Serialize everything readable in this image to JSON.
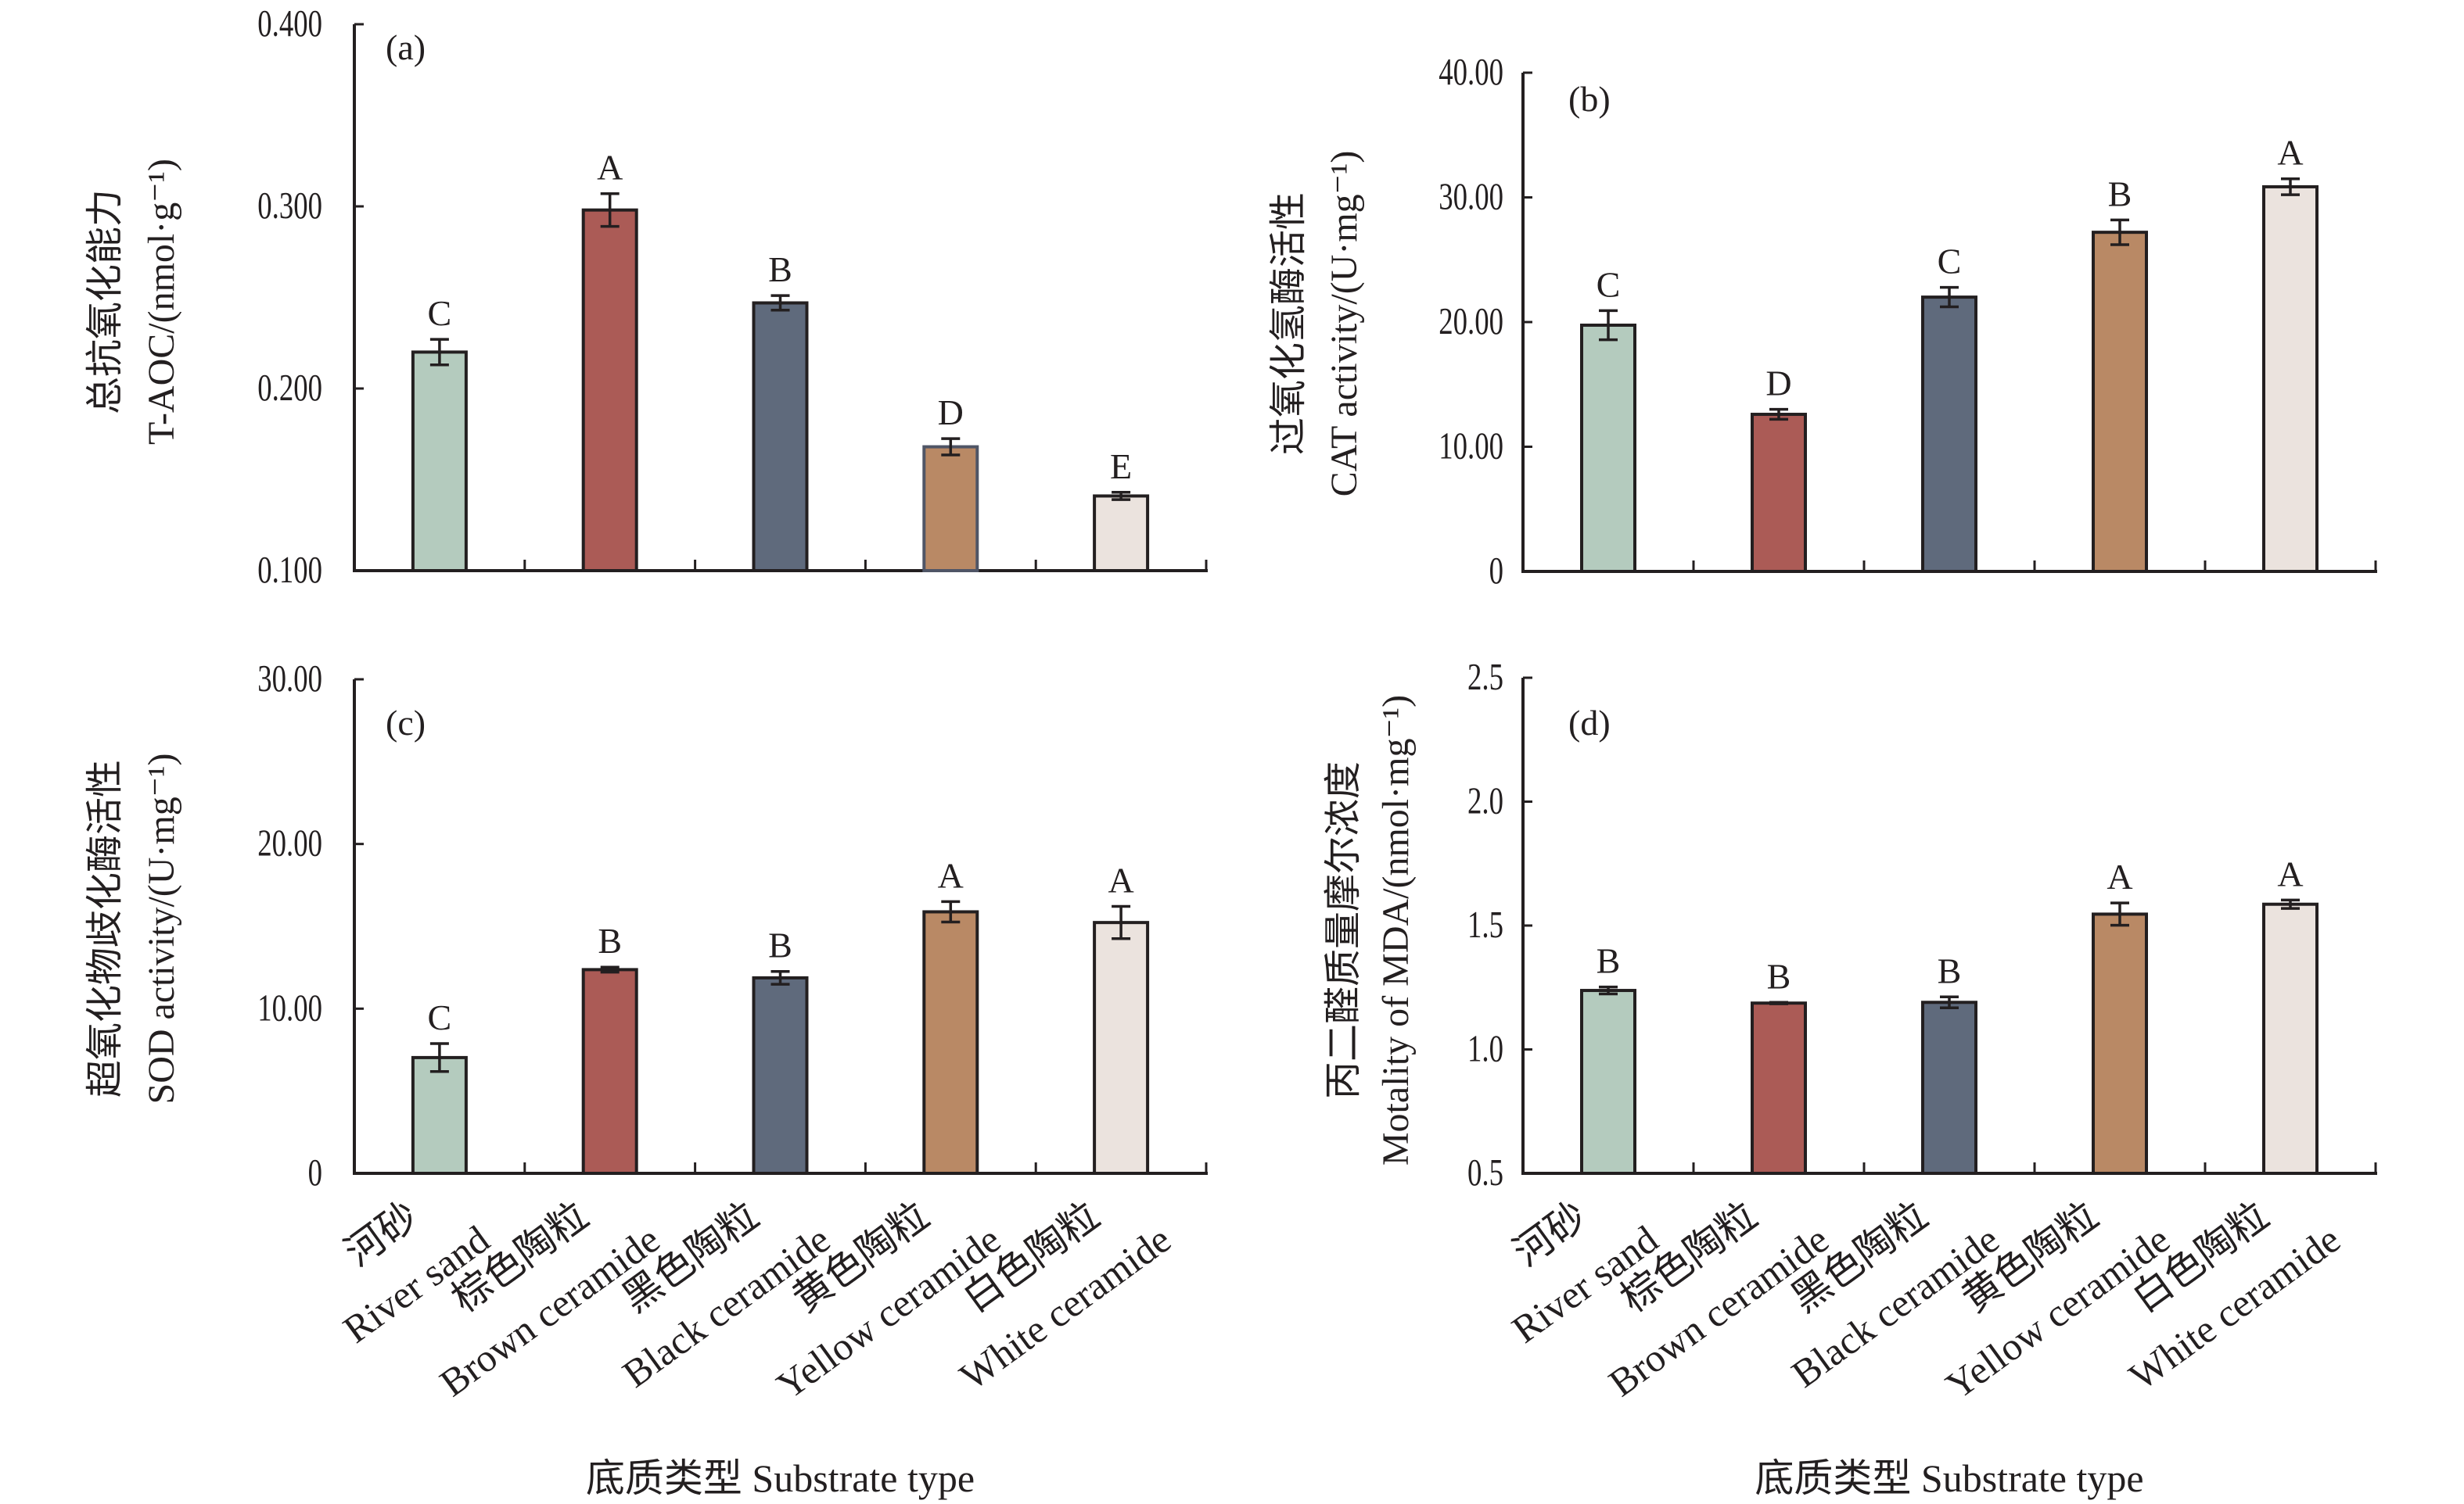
{
  "figure": {
    "x_title": "底质类型 Substrate type",
    "categories": [
      {
        "zh": "河砂",
        "en": "River sand"
      },
      {
        "zh": "棕色陶粒",
        "en": "Brown ceramide"
      },
      {
        "zh": "黑色陶粒",
        "en": "Black ceramide"
      },
      {
        "zh": "黄色陶粒",
        "en": "Yellow ceramide"
      },
      {
        "zh": "白色陶粒",
        "en": "White ceramide"
      }
    ],
    "colors": {
      "bar_fills": [
        "#b4cbbe",
        "#ab5b56",
        "#5f6a7c",
        "#b98965",
        "#ebe3de"
      ],
      "bar_stroke": "#231f20",
      "text": "#231f20"
    }
  },
  "chart_data": [
    {
      "type": "bar",
      "panel_label": "(a)",
      "title": "",
      "ylabel_zh": "总抗氧化能力",
      "ylabel_en": "T-AOC/(nmol·g⁻¹)",
      "xlabel": "",
      "categories": [
        "River sand",
        "Brown ceramide",
        "Black ceramide",
        "Yellow ceramide",
        "White ceramide"
      ],
      "values": [
        0.22,
        0.298,
        0.247,
        0.168,
        0.141
      ],
      "errors": [
        0.007,
        0.009,
        0.004,
        0.0045,
        0.002
      ],
      "significance": [
        "C",
        "A",
        "B",
        "D",
        "E"
      ],
      "ylim": [
        0.1,
        0.4
      ],
      "yticks": [
        0.1,
        0.2,
        0.3,
        0.4
      ],
      "ytick_labels": [
        "0.100",
        "0.200",
        "0.300",
        "0.400"
      ],
      "grid": false,
      "show_category_labels": false
    },
    {
      "type": "bar",
      "panel_label": "(b)",
      "title": "",
      "ylabel_zh": "过氧化氢酶活性",
      "ylabel_en": "CAT  activity/(U·mg⁻¹)",
      "xlabel": "",
      "categories": [
        "River sand",
        "Brown ceramide",
        "Black ceramide",
        "Yellow ceramide",
        "White ceramide"
      ],
      "values": [
        19.75,
        12.6,
        22.0,
        27.2,
        30.85
      ],
      "errors": [
        1.17,
        0.4,
        0.78,
        0.99,
        0.64
      ],
      "significance": [
        "C",
        "D",
        "C",
        "B",
        "A"
      ],
      "ylim": [
        0,
        40
      ],
      "yticks": [
        0,
        10,
        20,
        30,
        40
      ],
      "ytick_labels": [
        "0",
        "10.00",
        "20.00",
        "30.00",
        "40.00"
      ],
      "grid": false,
      "show_category_labels": false
    },
    {
      "type": "bar",
      "panel_label": "(c)",
      "title": "",
      "ylabel_zh": "超氧化物歧化酶活性",
      "ylabel_en": "SOD activity/(U·mg⁻¹)",
      "xlabel": "底质类型 Substrate type",
      "categories": [
        "River sand",
        "Brown ceramide",
        "Black ceramide",
        "Yellow ceramide",
        "White ceramide"
      ],
      "values": [
        7.03,
        12.37,
        11.87,
        15.88,
        15.23
      ],
      "errors": [
        0.85,
        0.15,
        0.39,
        0.62,
        0.98
      ],
      "significance": [
        "C",
        "B",
        "B",
        "A",
        "A"
      ],
      "ylim": [
        0,
        30
      ],
      "yticks": [
        0,
        10,
        20,
        30
      ],
      "ytick_labels": [
        "0",
        "10.00",
        "20.00",
        "30.00"
      ],
      "grid": false,
      "show_category_labels": true
    },
    {
      "type": "bar",
      "panel_label": "(d)",
      "title": "",
      "ylabel_zh": "丙二醛质量摩尔浓度",
      "ylabel_en": "Motality of MDA/(nmol·mg⁻¹)",
      "xlabel": "底质类型 Substrate type",
      "categories": [
        "River sand",
        "Brown ceramide",
        "Black ceramide",
        "Yellow ceramide",
        "White ceramide"
      ],
      "values": [
        1.238,
        1.187,
        1.19,
        1.546,
        1.586
      ],
      "errors": [
        0.014,
        0.003,
        0.022,
        0.045,
        0.017
      ],
      "significance": [
        "B",
        "B",
        "B",
        "A",
        "A"
      ],
      "ylim": [
        0.5,
        2.5
      ],
      "yticks": [
        0.5,
        1.0,
        1.5,
        2.0,
        2.5
      ],
      "ytick_labels": [
        "0.5",
        "1.0",
        "1.5",
        "2.0",
        "2.5"
      ],
      "grid": false,
      "show_category_labels": true
    }
  ]
}
